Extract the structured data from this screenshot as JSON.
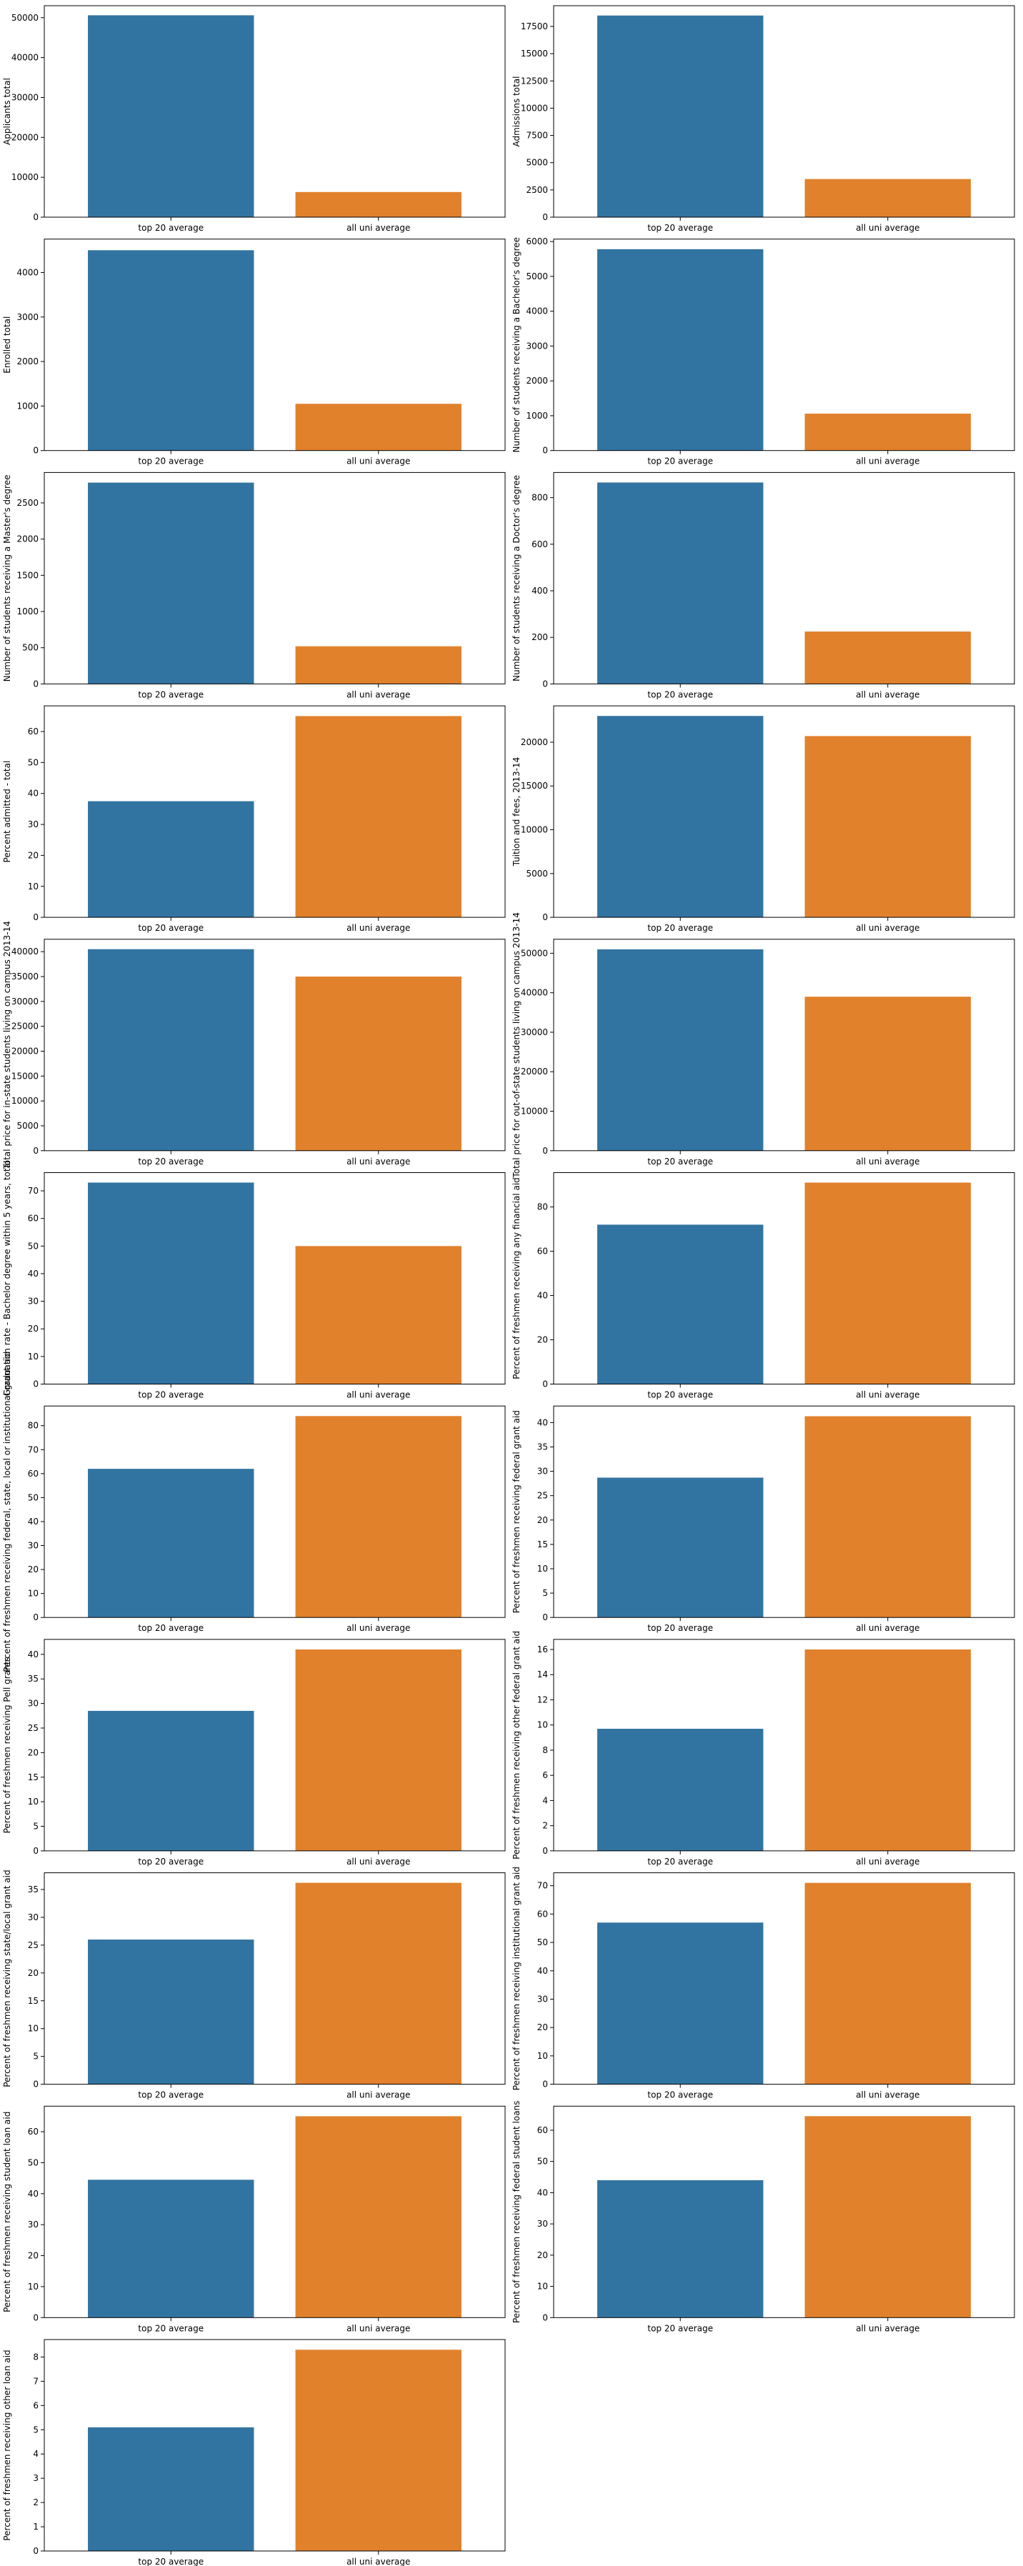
{
  "colors": {
    "blue": "#3274a1",
    "orange": "#e1812c",
    "axis": "#000000",
    "background": "#ffffff"
  },
  "chart_data": [
    {
      "type": "bar",
      "categories": [
        "top 20 average",
        "all uni average"
      ],
      "values": [
        50600,
        6300
      ],
      "ylabel": "Applicants total",
      "ylim": [
        0,
        53000
      ],
      "yticks": [
        0,
        10000,
        20000,
        30000,
        40000,
        50000
      ],
      "yticklabels": [
        "0",
        "10000",
        "20000",
        "30000",
        "40000",
        "50000"
      ],
      "grid": false
    },
    {
      "type": "bar",
      "categories": [
        "top 20 average",
        "all uni average"
      ],
      "values": [
        18500,
        3500
      ],
      "ylabel": "Admissions total",
      "ylim": [
        0,
        19400
      ],
      "yticks": [
        0,
        2500,
        5000,
        7500,
        10000,
        12500,
        15000,
        17500
      ],
      "yticklabels": [
        "0",
        "2500",
        "5000",
        "7500",
        "10000",
        "12500",
        "15000",
        "17500"
      ],
      "grid": false
    },
    {
      "type": "bar",
      "categories": [
        "top 20 average",
        "all uni average"
      ],
      "values": [
        4500,
        1050
      ],
      "ylabel": "Enrolled total",
      "ylim": [
        0,
        4750
      ],
      "yticks": [
        0,
        1000,
        2000,
        3000,
        4000
      ],
      "yticklabels": [
        "0",
        "1000",
        "2000",
        "3000",
        "4000"
      ],
      "grid": false
    },
    {
      "type": "bar",
      "categories": [
        "top 20 average",
        "all uni average"
      ],
      "values": [
        5780,
        1060
      ],
      "ylabel": "Number of students receiving a Bachelor's degree",
      "ylim": [
        0,
        6070
      ],
      "yticks": [
        0,
        1000,
        2000,
        3000,
        4000,
        5000,
        6000
      ],
      "yticklabels": [
        "0",
        "1000",
        "2000",
        "3000",
        "4000",
        "5000",
        "6000"
      ],
      "grid": false
    },
    {
      "type": "bar",
      "categories": [
        "top 20 average",
        "all uni average"
      ],
      "values": [
        2780,
        520
      ],
      "ylabel": "Number of students receiving a Master's degree",
      "ylim": [
        0,
        2920
      ],
      "yticks": [
        0,
        500,
        1000,
        1500,
        2000,
        2500
      ],
      "yticklabels": [
        "0",
        "500",
        "1000",
        "1500",
        "2000",
        "2500"
      ],
      "grid": false
    },
    {
      "type": "bar",
      "categories": [
        "top 20 average",
        "all uni average"
      ],
      "values": [
        865,
        225
      ],
      "ylabel": "Number of students receiving a Doctor's degree",
      "ylim": [
        0,
        908
      ],
      "yticks": [
        0,
        200,
        400,
        600,
        800
      ],
      "yticklabels": [
        "0",
        "200",
        "400",
        "600",
        "800"
      ],
      "grid": false
    },
    {
      "type": "bar",
      "categories": [
        "top 20 average",
        "all uni average"
      ],
      "values": [
        37.5,
        65
      ],
      "ylabel": "Percent admitted - total",
      "ylim": [
        0,
        68.3
      ],
      "yticks": [
        0,
        10,
        20,
        30,
        40,
        50,
        60
      ],
      "yticklabels": [
        "0",
        "10",
        "20",
        "30",
        "40",
        "50",
        "60"
      ],
      "grid": false
    },
    {
      "type": "bar",
      "categories": [
        "top 20 average",
        "all uni average"
      ],
      "values": [
        23000,
        20700
      ],
      "ylabel": "Tuition and fees, 2013-14",
      "ylim": [
        0,
        24150
      ],
      "yticks": [
        0,
        5000,
        10000,
        15000,
        20000
      ],
      "yticklabels": [
        "0",
        "5000",
        "10000",
        "15000",
        "20000"
      ],
      "grid": false
    },
    {
      "type": "bar",
      "categories": [
        "top 20 average",
        "all uni average"
      ],
      "values": [
        40500,
        35000
      ],
      "ylabel": "Total price for in-state students living on campus 2013-14",
      "ylim": [
        0,
        42500
      ],
      "yticks": [
        0,
        5000,
        10000,
        15000,
        20000,
        25000,
        30000,
        35000,
        40000
      ],
      "yticklabels": [
        "0",
        "5000",
        "10000",
        "15000",
        "20000",
        "25000",
        "30000",
        "35000",
        "40000"
      ],
      "grid": false
    },
    {
      "type": "bar",
      "categories": [
        "top 20 average",
        "all uni average"
      ],
      "values": [
        51000,
        39000
      ],
      "ylabel": "Total price for out-of-state students living on campus 2013-14",
      "ylim": [
        0,
        53550
      ],
      "yticks": [
        0,
        10000,
        20000,
        30000,
        40000,
        50000
      ],
      "yticklabels": [
        "0",
        "10000",
        "20000",
        "30000",
        "40000",
        "50000"
      ],
      "grid": false
    },
    {
      "type": "bar",
      "categories": [
        "top 20 average",
        "all uni average"
      ],
      "values": [
        73,
        50
      ],
      "ylabel": "Graduation rate - Bachelor degree within 5 years, total",
      "ylim": [
        0,
        76.6
      ],
      "yticks": [
        0,
        10,
        20,
        30,
        40,
        50,
        60,
        70
      ],
      "yticklabels": [
        "0",
        "10",
        "20",
        "30",
        "40",
        "50",
        "60",
        "70"
      ],
      "grid": false
    },
    {
      "type": "bar",
      "categories": [
        "top 20 average",
        "all uni average"
      ],
      "values": [
        72,
        91
      ],
      "ylabel": "Percent of freshmen receiving any financial aid",
      "ylim": [
        0,
        95.5
      ],
      "yticks": [
        0,
        20,
        40,
        60,
        80
      ],
      "yticklabels": [
        "0",
        "20",
        "40",
        "60",
        "80"
      ],
      "grid": false
    },
    {
      "type": "bar",
      "categories": [
        "top 20 average",
        "all uni average"
      ],
      "values": [
        62,
        84
      ],
      "ylabel": "Percent of freshmen receiving federal, state, local or institutional grant aid",
      "ylim": [
        0,
        88.2
      ],
      "yticks": [
        0,
        10,
        20,
        30,
        40,
        50,
        60,
        70,
        80
      ],
      "yticklabels": [
        "0",
        "10",
        "20",
        "30",
        "40",
        "50",
        "60",
        "70",
        "80"
      ],
      "grid": false
    },
    {
      "type": "bar",
      "categories": [
        "top 20 average",
        "all uni average"
      ],
      "values": [
        28.7,
        41.3
      ],
      "ylabel": "Percent of freshmen receiving federal grant aid",
      "ylim": [
        0,
        43.4
      ],
      "yticks": [
        0,
        5,
        10,
        15,
        20,
        25,
        30,
        35,
        40
      ],
      "yticklabels": [
        "0",
        "5",
        "10",
        "15",
        "20",
        "25",
        "30",
        "35",
        "40"
      ],
      "grid": false
    },
    {
      "type": "bar",
      "categories": [
        "top 20 average",
        "all uni average"
      ],
      "values": [
        28.5,
        41
      ],
      "ylabel": "Percent of freshmen receiving Pell grants",
      "ylim": [
        0,
        43.05
      ],
      "yticks": [
        0,
        5,
        10,
        15,
        20,
        25,
        30,
        35,
        40
      ],
      "yticklabels": [
        "0",
        "5",
        "10",
        "15",
        "20",
        "25",
        "30",
        "35",
        "40"
      ],
      "grid": false
    },
    {
      "type": "bar",
      "categories": [
        "top 20 average",
        "all uni average"
      ],
      "values": [
        9.7,
        16
      ],
      "ylabel": "Percent of freshmen receiving other federal grant aid",
      "ylim": [
        0,
        16.8
      ],
      "yticks": [
        0,
        2,
        4,
        6,
        8,
        10,
        12,
        14,
        16
      ],
      "yticklabels": [
        "0",
        "2",
        "4",
        "6",
        "8",
        "10",
        "12",
        "14",
        "16"
      ],
      "grid": false
    },
    {
      "type": "bar",
      "categories": [
        "top 20 average",
        "all uni average"
      ],
      "values": [
        26,
        36.2
      ],
      "ylabel": "Percent of freshmen receiving state/local grant aid",
      "ylim": [
        0,
        38
      ],
      "yticks": [
        0,
        5,
        10,
        15,
        20,
        25,
        30,
        35
      ],
      "yticklabels": [
        "0",
        "5",
        "10",
        "15",
        "20",
        "25",
        "30",
        "35"
      ],
      "grid": false
    },
    {
      "type": "bar",
      "categories": [
        "top 20 average",
        "all uni average"
      ],
      "values": [
        57,
        71
      ],
      "ylabel": "Percent of freshmen receiving institutional grant aid",
      "ylim": [
        0,
        74.55
      ],
      "yticks": [
        0,
        10,
        20,
        30,
        40,
        50,
        60,
        70
      ],
      "yticklabels": [
        "0",
        "10",
        "20",
        "30",
        "40",
        "50",
        "60",
        "70"
      ],
      "grid": false
    },
    {
      "type": "bar",
      "categories": [
        "top 20 average",
        "all uni average"
      ],
      "values": [
        44.5,
        65
      ],
      "ylabel": "Percent of freshmen receiving student loan aid",
      "ylim": [
        0,
        68.25
      ],
      "yticks": [
        0,
        10,
        20,
        30,
        40,
        50,
        60
      ],
      "yticklabels": [
        "0",
        "10",
        "20",
        "30",
        "40",
        "50",
        "60"
      ],
      "grid": false
    },
    {
      "type": "bar",
      "categories": [
        "top 20 average",
        "all uni average"
      ],
      "values": [
        44,
        64.5
      ],
      "ylabel": "Percent of freshmen receiving federal student loans",
      "ylim": [
        0,
        67.7
      ],
      "yticks": [
        0,
        10,
        20,
        30,
        40,
        50,
        60
      ],
      "yticklabels": [
        "0",
        "10",
        "20",
        "30",
        "40",
        "50",
        "60"
      ],
      "grid": false
    },
    {
      "type": "bar",
      "categories": [
        "top 20 average",
        "all uni average"
      ],
      "values": [
        5.1,
        8.3
      ],
      "ylabel": "Percent of freshmen receiving other loan aid",
      "ylim": [
        0,
        8.72
      ],
      "yticks": [
        0,
        1,
        2,
        3,
        4,
        5,
        6,
        7,
        8
      ],
      "yticklabels": [
        "0",
        "1",
        "2",
        "3",
        "4",
        "5",
        "6",
        "7",
        "8"
      ],
      "grid": false
    }
  ]
}
